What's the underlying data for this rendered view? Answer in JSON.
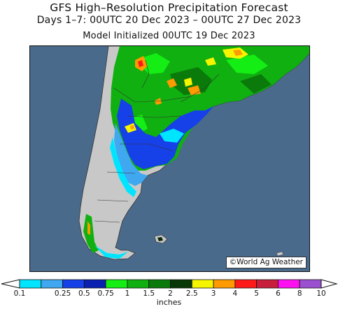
{
  "title": "GFS High–Resolution Precipitation Forecast",
  "subtitle": "Days 1–7: 00UTC 20 Dec 2023 – 00UTC 27 Dec 2023",
  "init": "Model Initialized 00UTC 19 Dec 2023",
  "credit": "©World Ag Weather",
  "legend": {
    "units": "inches",
    "ticks": [
      "0.1",
      "0.25",
      "0.5",
      "0.75",
      "1",
      "1.5",
      "2",
      "2.5",
      "3",
      "4",
      "5",
      "6",
      "8",
      "10"
    ],
    "colors": [
      "#00e5ff",
      "#3fa8f0",
      "#1640e8",
      "#0a20b0",
      "#14ee14",
      "#10b010",
      "#0a7a0a",
      "#083808",
      "#f5f500",
      "#ff9a00",
      "#ff1a1a",
      "#c81e3c",
      "#ff10f0",
      "#9a50d0"
    ]
  },
  "map": {
    "ocean_color": "#4a6a8c",
    "land_color": "#c8c8c8",
    "region": "Southern South America (Argentina, Chile, Uruguay)"
  }
}
